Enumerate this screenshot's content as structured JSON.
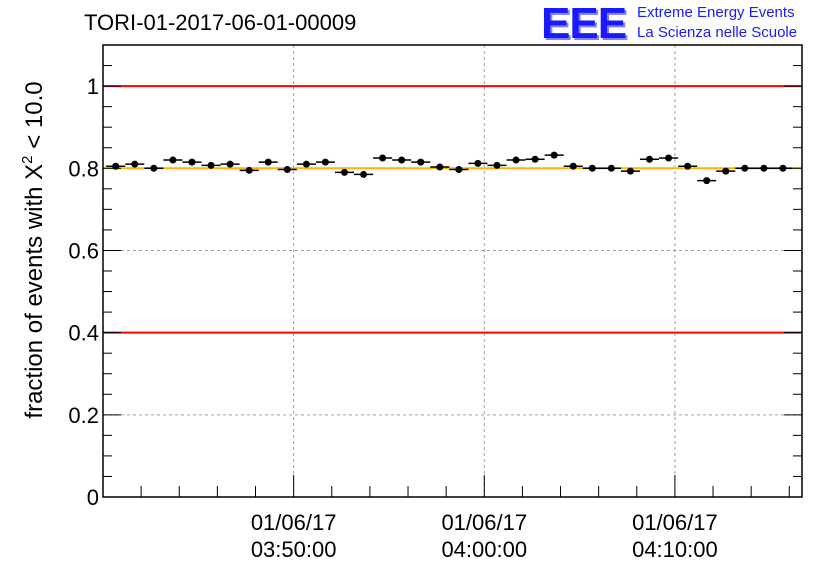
{
  "header": {
    "title": "TORI-01-2017-06-01-00009",
    "logo_mark": "EEE",
    "logo_line1": "Extreme Energy Events",
    "logo_line2": "La Scienza nelle Scuole"
  },
  "colors": {
    "limit_line": "#ff0000",
    "reference_line": "#ffb400",
    "markers": "#000000",
    "grid": "#a0a0a0",
    "logo": "#1a1aff"
  },
  "chart_data": {
    "type": "scatter",
    "title": "TORI-01-2017-06-01-00009",
    "xlabel": "",
    "ylabel": "fraction of events with Χ² < 10.0",
    "ylabel_main": "fraction of events with Χ",
    "ylabel_sup": "2",
    "ylabel_tail": " < 10.0",
    "x_unit": "time",
    "xlim": [
      "03:40:00",
      "04:16:40"
    ],
    "ylim": [
      0,
      1.1
    ],
    "yticks": [
      0,
      0.2,
      0.4,
      0.6,
      0.8,
      1
    ],
    "ytick_labels": [
      "0",
      "0.2",
      "0.4",
      "0.6",
      "0.8",
      "1"
    ],
    "xticks": [
      "03:50:00",
      "04:00:00",
      "04:10:00"
    ],
    "xtick_dates": [
      "01/06/17",
      "01/06/17",
      "01/06/17"
    ],
    "grid": true,
    "hlines": [
      {
        "y": 1.0,
        "color": "#ff0000"
      },
      {
        "y": 0.4,
        "color": "#ff0000"
      },
      {
        "y": 0.8,
        "color": "#ffb400"
      }
    ],
    "bin_half_width": "00:00:30",
    "x": [
      "03:40:40",
      "03:41:40",
      "03:42:40",
      "03:43:40",
      "03:44:40",
      "03:45:40",
      "03:46:40",
      "03:47:40",
      "03:48:40",
      "03:49:40",
      "03:50:40",
      "03:51:40",
      "03:52:40",
      "03:53:40",
      "03:54:40",
      "03:55:40",
      "03:56:40",
      "03:57:40",
      "03:58:40",
      "03:59:40",
      "04:00:40",
      "04:01:40",
      "04:02:40",
      "04:03:40",
      "04:04:40",
      "04:05:40",
      "04:06:40",
      "04:07:40",
      "04:08:40",
      "04:09:40",
      "04:10:40",
      "04:11:40",
      "04:12:40",
      "04:13:40",
      "04:14:40",
      "04:15:40"
    ],
    "y": [
      0.805,
      0.81,
      0.8,
      0.82,
      0.815,
      0.807,
      0.81,
      0.795,
      0.815,
      0.797,
      0.81,
      0.815,
      0.79,
      0.785,
      0.825,
      0.82,
      0.815,
      0.803,
      0.797,
      0.812,
      0.807,
      0.82,
      0.822,
      0.832,
      0.805,
      0.8,
      0.8,
      0.793,
      0.822,
      0.825,
      0.805,
      0.77,
      0.793,
      0.8,
      0.8,
      0.8
    ],
    "yerr": 0.006
  }
}
